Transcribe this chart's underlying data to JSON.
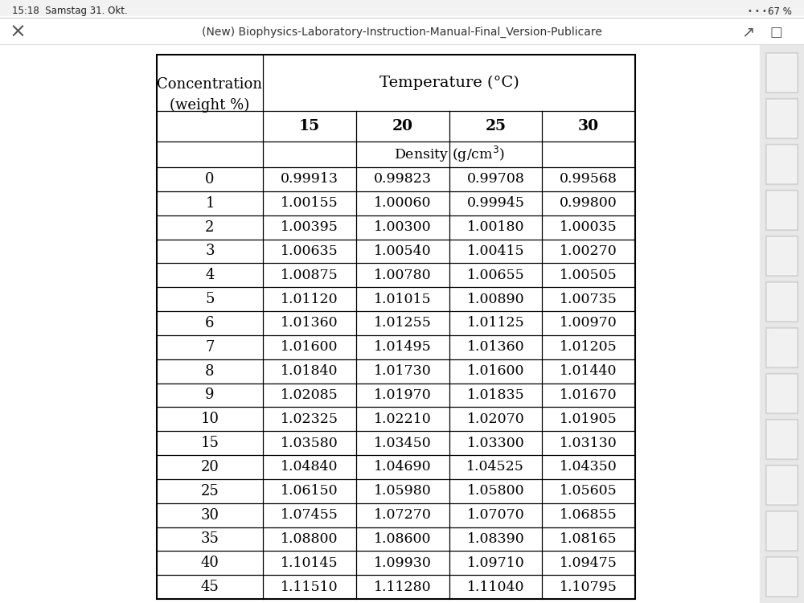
{
  "title_header": "(New) Biophysics-Laboratory-Instruction-Manual-Final_Version-Publicare",
  "status_left": "15:18  Samstag 31. Okt.",
  "status_right": "67 %",
  "temp_labels": [
    "15",
    "20",
    "25",
    "30"
  ],
  "concentrations": [
    "0",
    "1",
    "2",
    "3",
    "4",
    "5",
    "6",
    "7",
    "8",
    "9",
    "10",
    "15",
    "20",
    "25",
    "30",
    "35",
    "40",
    "45"
  ],
  "data": [
    [
      "0.99913",
      "0.99823",
      "0.99708",
      "0.99568"
    ],
    [
      "1.00155",
      "1.00060",
      "0.99945",
      "0.99800"
    ],
    [
      "1.00395",
      "1.00300",
      "1.00180",
      "1.00035"
    ],
    [
      "1.00635",
      "1.00540",
      "1.00415",
      "1.00270"
    ],
    [
      "1.00875",
      "1.00780",
      "1.00655",
      "1.00505"
    ],
    [
      "1.01120",
      "1.01015",
      "1.00890",
      "1.00735"
    ],
    [
      "1.01360",
      "1.01255",
      "1.01125",
      "1.00970"
    ],
    [
      "1.01600",
      "1.01495",
      "1.01360",
      "1.01205"
    ],
    [
      "1.01840",
      "1.01730",
      "1.01600",
      "1.01440"
    ],
    [
      "1.02085",
      "1.01970",
      "1.01835",
      "1.01670"
    ],
    [
      "1.02325",
      "1.02210",
      "1.02070",
      "1.01905"
    ],
    [
      "1.03580",
      "1.03450",
      "1.03300",
      "1.03130"
    ],
    [
      "1.04840",
      "1.04690",
      "1.04525",
      "1.04350"
    ],
    [
      "1.06150",
      "1.05980",
      "1.05800",
      "1.05605"
    ],
    [
      "1.07455",
      "1.07270",
      "1.07070",
      "1.06855"
    ],
    [
      "1.08800",
      "1.08600",
      "1.08390",
      "1.08165"
    ],
    [
      "1.10145",
      "1.09930",
      "1.09710",
      "1.09475"
    ],
    [
      "1.11510",
      "1.11280",
      "1.11040",
      "1.10795"
    ]
  ],
  "bg_color": "#f0f0f0",
  "table_bg": "#ffffff",
  "border_color": "#000000",
  "text_color": "#000000",
  "ui_color": "#333333",
  "figsize": [
    10.0,
    7.5
  ],
  "dpi": 100,
  "font_family": "DejaVu Serif"
}
